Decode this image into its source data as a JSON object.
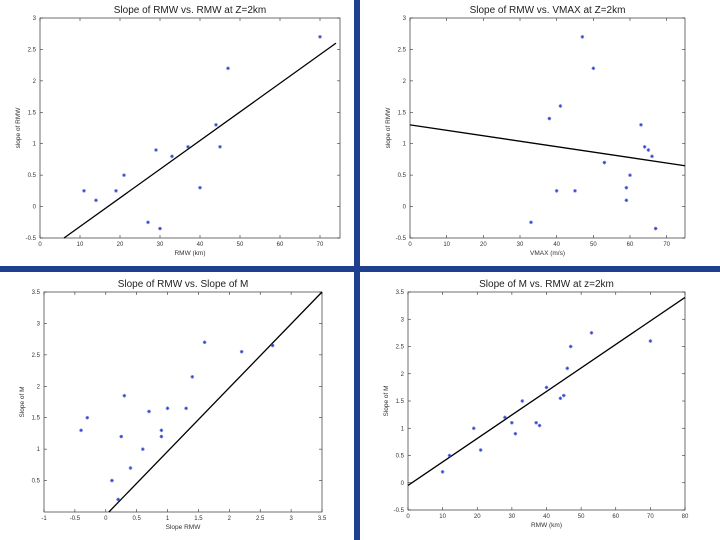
{
  "colors": {
    "divider": "#1f3f8f",
    "marker": "#3344cc",
    "fit_line": "#000000",
    "axis": "#333333"
  },
  "chart_data": [
    {
      "type": "scatter",
      "title": "Slope of RMW vs. RMW at Z=2km",
      "xlabel": "RMW (km)",
      "ylabel": "slope of RMW",
      "xlim": [
        0,
        75
      ],
      "ylim": [
        -0.5,
        3
      ],
      "xticks": [
        0,
        10,
        20,
        30,
        40,
        50,
        60,
        70
      ],
      "yticks": [
        -0.5,
        0,
        0.5,
        1,
        1.5,
        2,
        2.5,
        3
      ],
      "tick_labels_x": [
        "0",
        "10",
        "20",
        "30",
        "40",
        "50",
        "60",
        "70"
      ],
      "tick_labels_y": [
        "-0.5",
        "0",
        "0.5",
        "1",
        "1.5",
        "2",
        "2.5",
        "3"
      ],
      "points": {
        "x": [
          11,
          14,
          19,
          21,
          27,
          29,
          30,
          33,
          37,
          40,
          44,
          45,
          47,
          70
        ],
        "y": [
          0.25,
          0.1,
          0.25,
          0.5,
          -0.25,
          0.9,
          -0.35,
          0.8,
          0.95,
          0.3,
          1.3,
          0.95,
          2.2,
          2.7
        ]
      },
      "fit_line": {
        "x": [
          6,
          74
        ],
        "y": [
          -0.5,
          2.6
        ]
      }
    },
    {
      "type": "scatter",
      "title": "Slope of RMW vs. VMAX at Z=2km",
      "xlabel": "VMAX (m/s)",
      "ylabel": "slope of RMW",
      "xlim": [
        0,
        75
      ],
      "ylim": [
        -0.5,
        3
      ],
      "xticks": [
        0,
        10,
        20,
        30,
        40,
        50,
        60,
        70
      ],
      "yticks": [
        -0.5,
        0,
        0.5,
        1,
        1.5,
        2,
        2.5,
        3
      ],
      "tick_labels_x": [
        "0",
        "10",
        "20",
        "30",
        "40",
        "50",
        "60",
        "70"
      ],
      "tick_labels_y": [
        "-0.5",
        "0",
        "0.5",
        "1",
        "1.5",
        "2",
        "2.5",
        "3"
      ],
      "points": {
        "x": [
          33,
          38,
          40,
          41,
          45,
          47,
          50,
          53,
          59,
          59,
          60,
          63,
          64,
          65,
          66,
          67
        ],
        "y": [
          -0.25,
          1.4,
          0.25,
          1.6,
          0.25,
          2.7,
          2.2,
          0.7,
          0.3,
          0.1,
          0.5,
          1.3,
          0.95,
          0.9,
          0.8,
          -0.35
        ]
      },
      "fit_line": {
        "x": [
          0,
          75
        ],
        "y": [
          1.3,
          0.65
        ]
      }
    },
    {
      "type": "scatter",
      "title": "Slope of RMW vs. Slope of M",
      "xlabel": "Slope RMW",
      "ylabel": "Slope of M",
      "xlim": [
        -1,
        3.5
      ],
      "ylim": [
        0,
        3.5
      ],
      "xticks": [
        -1,
        -0.5,
        0,
        0.5,
        1,
        1.5,
        2,
        2.5,
        3,
        3.5
      ],
      "yticks": [
        0.5,
        1,
        1.5,
        2,
        2.5,
        3,
        3.5
      ],
      "tick_labels_x": [
        "-1",
        "-0.5",
        "0",
        "0.5",
        "1",
        "1.5",
        "2",
        "2.5",
        "3",
        "3.5"
      ],
      "tick_labels_y": [
        "0.5",
        "1",
        "1.5",
        "2",
        "2.5",
        "3",
        "3.5"
      ],
      "points": {
        "x": [
          -0.4,
          -0.3,
          0.1,
          0.2,
          0.25,
          0.3,
          0.4,
          0.6,
          0.7,
          0.9,
          0.9,
          1.0,
          1.3,
          1.4,
          1.6,
          2.2,
          2.7
        ],
        "y": [
          1.3,
          1.5,
          0.5,
          0.2,
          1.2,
          1.85,
          0.7,
          1.0,
          1.6,
          1.3,
          1.2,
          1.65,
          1.65,
          2.15,
          2.7,
          2.55,
          2.65
        ]
      },
      "fit_line": {
        "x": [
          0.05,
          3.5
        ],
        "y": [
          0,
          3.5
        ]
      }
    },
    {
      "type": "scatter",
      "title": "Slope of M vs. RMW at z=2km",
      "xlabel": "RMW (km)",
      "ylabel": "Slope of M",
      "xlim": [
        0,
        80
      ],
      "ylim": [
        -0.5,
        3.5
      ],
      "xticks": [
        0,
        10,
        20,
        30,
        40,
        50,
        60,
        70,
        80
      ],
      "yticks": [
        -0.5,
        0,
        0.5,
        1,
        1.5,
        2,
        2.5,
        3,
        3.5
      ],
      "tick_labels_x": [
        "0",
        "10",
        "20",
        "30",
        "40",
        "50",
        "60",
        "70",
        "80"
      ],
      "tick_labels_y": [
        "-0.5",
        "0",
        "0.5",
        "1",
        "1.5",
        "2",
        "2.5",
        "3",
        "3.5"
      ],
      "points": {
        "x": [
          10,
          12,
          19,
          21,
          28,
          30,
          31,
          33,
          37,
          38,
          40,
          44,
          45,
          46,
          47,
          53,
          70
        ],
        "y": [
          0.2,
          0.5,
          1.0,
          0.6,
          1.2,
          1.1,
          0.9,
          1.5,
          1.1,
          1.05,
          1.75,
          1.55,
          1.6,
          2.1,
          2.5,
          2.75,
          2.6
        ]
      },
      "fit_line": {
        "x": [
          0,
          80
        ],
        "y": [
          -0.05,
          3.4
        ]
      }
    }
  ]
}
